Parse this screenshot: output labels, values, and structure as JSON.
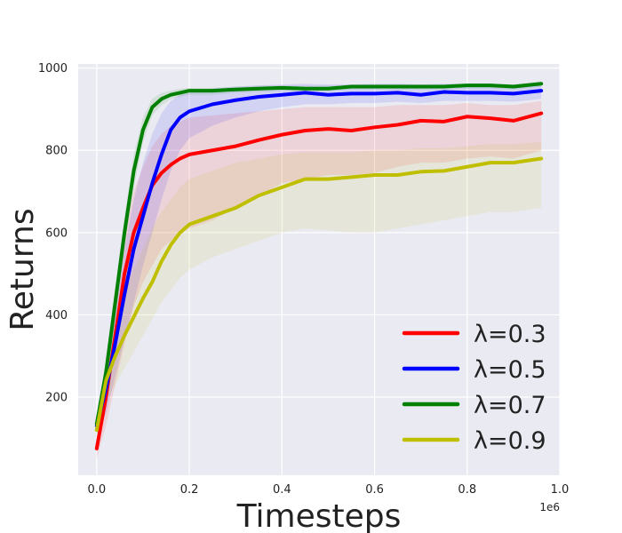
{
  "chart_data": {
    "type": "line",
    "title": "",
    "xlabel": "Timesteps",
    "ylabel": "Returns",
    "x_offset_label": "1e6",
    "xlim": [
      -0.04,
      1.0
    ],
    "ylim": [
      10,
      1010
    ],
    "xticks": [
      0.0,
      0.2,
      0.4,
      0.6,
      0.8,
      1.0
    ],
    "xtick_labels": [
      "0.0",
      "0.2",
      "0.4",
      "0.6",
      "0.8",
      "1.0"
    ],
    "yticks": [
      200,
      400,
      600,
      800,
      1000
    ],
    "ytick_labels": [
      "200",
      "400",
      "600",
      "800",
      "1000"
    ],
    "grid": true,
    "legend_position": "lower-right",
    "x": [
      0.0,
      0.02,
      0.04,
      0.06,
      0.08,
      0.1,
      0.12,
      0.14,
      0.16,
      0.18,
      0.2,
      0.25,
      0.3,
      0.35,
      0.4,
      0.45,
      0.5,
      0.55,
      0.6,
      0.65,
      0.7,
      0.75,
      0.8,
      0.85,
      0.9,
      0.96
    ],
    "series": [
      {
        "name": "λ=0.3",
        "color": "#ff0000",
        "values": [
          75,
          200,
          350,
          500,
          600,
          660,
          715,
          745,
          765,
          780,
          790,
          800,
          810,
          825,
          838,
          848,
          852,
          848,
          856,
          862,
          872,
          870,
          882,
          878,
          872,
          890
        ],
        "lower": [
          50,
          130,
          230,
          330,
          420,
          480,
          520,
          560,
          580,
          600,
          610,
          630,
          660,
          690,
          720,
          730,
          740,
          740,
          745,
          760,
          770,
          770,
          780,
          785,
          780,
          800
        ],
        "upper": [
          100,
          260,
          440,
          600,
          700,
          760,
          810,
          840,
          860,
          870,
          880,
          885,
          890,
          895,
          900,
          905,
          905,
          905,
          905,
          910,
          910,
          910,
          915,
          910,
          910,
          920
        ]
      },
      {
        "name": "λ=0.5",
        "color": "#0000ff",
        "values": [
          130,
          220,
          330,
          450,
          560,
          640,
          720,
          790,
          850,
          880,
          895,
          912,
          922,
          930,
          935,
          940,
          935,
          938,
          938,
          940,
          935,
          942,
          940,
          940,
          938,
          945
        ],
        "lower": [
          110,
          160,
          250,
          340,
          430,
          520,
          600,
          680,
          750,
          800,
          830,
          860,
          880,
          895,
          905,
          912,
          912,
          915,
          915,
          918,
          915,
          920,
          920,
          920,
          918,
          925
        ],
        "upper": [
          150,
          290,
          420,
          560,
          680,
          770,
          840,
          890,
          920,
          935,
          945,
          950,
          955,
          958,
          960,
          962,
          960,
          960,
          962,
          962,
          960,
          962,
          962,
          962,
          960,
          965
        ]
      },
      {
        "name": "λ=0.7",
        "color": "#008000",
        "values": [
          135,
          260,
          430,
          600,
          750,
          850,
          905,
          925,
          935,
          940,
          945,
          945,
          948,
          950,
          952,
          950,
          950,
          955,
          955,
          955,
          955,
          955,
          958,
          958,
          955,
          962
        ],
        "lower": [
          120,
          230,
          390,
          560,
          710,
          820,
          885,
          910,
          925,
          930,
          935,
          935,
          940,
          942,
          944,
          944,
          944,
          948,
          948,
          948,
          948,
          948,
          950,
          950,
          948,
          955
        ],
        "upper": [
          150,
          290,
          470,
          640,
          790,
          880,
          925,
          940,
          945,
          950,
          952,
          952,
          955,
          957,
          958,
          957,
          957,
          960,
          960,
          960,
          960,
          960,
          962,
          962,
          960,
          968
        ]
      },
      {
        "name": "λ=0.9",
        "color": "#bfbf00",
        "values": [
          120,
          240,
          300,
          350,
          395,
          440,
          480,
          530,
          570,
          600,
          620,
          640,
          660,
          690,
          710,
          730,
          730,
          735,
          740,
          740,
          748,
          750,
          760,
          770,
          770,
          780
        ],
        "lower": [
          100,
          190,
          230,
          270,
          310,
          350,
          390,
          430,
          460,
          490,
          510,
          540,
          560,
          580,
          600,
          610,
          605,
          600,
          600,
          610,
          620,
          630,
          640,
          650,
          650,
          660
        ],
        "upper": [
          140,
          290,
          380,
          450,
          510,
          560,
          610,
          650,
          680,
          710,
          730,
          750,
          770,
          780,
          790,
          795,
          795,
          795,
          800,
          800,
          805,
          805,
          810,
          815,
          815,
          820
        ]
      }
    ]
  }
}
